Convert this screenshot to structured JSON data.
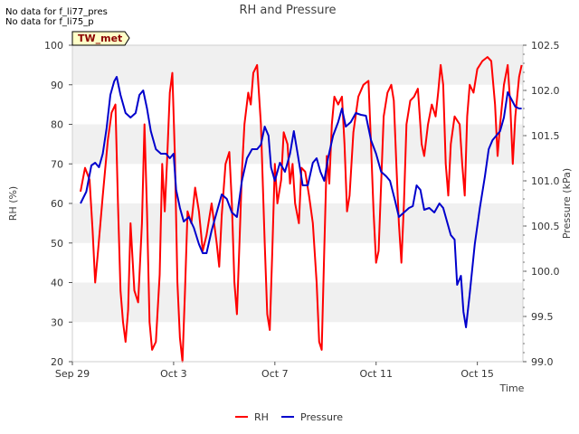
{
  "notes": [
    "No data for f_li77_pres",
    "No data for f_li75_p"
  ],
  "chart_data": {
    "type": "line",
    "title": "RH and Pressure",
    "station_badge": "TW_met",
    "xlabel": "Time",
    "ylabel_left": "RH (%)",
    "ylabel_right": "Pressure (kPa)",
    "x_ticks": [
      "Sep 29",
      "Oct 3",
      "Oct 7",
      "Oct 11",
      "Oct 15"
    ],
    "x_tick_days": [
      0,
      4,
      8,
      12,
      16
    ],
    "x_range_days": [
      0,
      17.8
    ],
    "ylim_left": [
      20,
      100
    ],
    "yticks_left": [
      20,
      30,
      40,
      50,
      60,
      70,
      80,
      90,
      100
    ],
    "ylim_right": [
      99.0,
      102.5
    ],
    "yticks_right": [
      "99.0",
      "99.5",
      "100.0",
      "100.5",
      "101.0",
      "101.5",
      "102.0",
      "102.5"
    ],
    "grid": "horizontal bands",
    "legend_position": "bottom-center",
    "series": [
      {
        "name": "RH",
        "axis": "left",
        "color": "#ff0000",
        "points": [
          [
            0.32,
            63
          ],
          [
            0.5,
            69
          ],
          [
            0.68,
            66
          ],
          [
            0.8,
            53
          ],
          [
            0.9,
            40
          ],
          [
            1.0,
            47
          ],
          [
            1.2,
            62
          ],
          [
            1.4,
            76
          ],
          [
            1.55,
            83
          ],
          [
            1.7,
            85
          ],
          [
            1.8,
            60
          ],
          [
            1.9,
            38
          ],
          [
            2.0,
            30
          ],
          [
            2.1,
            25
          ],
          [
            2.2,
            33
          ],
          [
            2.3,
            55
          ],
          [
            2.45,
            38
          ],
          [
            2.6,
            35
          ],
          [
            2.75,
            55
          ],
          [
            2.85,
            80
          ],
          [
            2.95,
            58
          ],
          [
            3.05,
            30
          ],
          [
            3.15,
            23
          ],
          [
            3.3,
            25
          ],
          [
            3.45,
            42
          ],
          [
            3.55,
            70
          ],
          [
            3.65,
            58
          ],
          [
            3.75,
            72
          ],
          [
            3.85,
            88
          ],
          [
            3.95,
            93
          ],
          [
            4.05,
            72
          ],
          [
            4.15,
            40
          ],
          [
            4.25,
            26
          ],
          [
            4.35,
            20
          ],
          [
            4.45,
            38
          ],
          [
            4.55,
            58
          ],
          [
            4.7,
            55
          ],
          [
            4.85,
            64
          ],
          [
            5.0,
            58
          ],
          [
            5.15,
            48
          ],
          [
            5.3,
            52
          ],
          [
            5.5,
            60
          ],
          [
            5.7,
            50
          ],
          [
            5.8,
            44
          ],
          [
            5.9,
            57
          ],
          [
            6.05,
            70
          ],
          [
            6.2,
            73
          ],
          [
            6.3,
            60
          ],
          [
            6.4,
            40
          ],
          [
            6.5,
            32
          ],
          [
            6.6,
            50
          ],
          [
            6.7,
            68
          ],
          [
            6.8,
            80
          ],
          [
            6.95,
            88
          ],
          [
            7.05,
            85
          ],
          [
            7.15,
            93
          ],
          [
            7.3,
            95
          ],
          [
            7.45,
            80
          ],
          [
            7.6,
            50
          ],
          [
            7.7,
            32
          ],
          [
            7.8,
            28
          ],
          [
            7.9,
            48
          ],
          [
            8.0,
            70
          ],
          [
            8.1,
            60
          ],
          [
            8.25,
            66
          ],
          [
            8.35,
            78
          ],
          [
            8.5,
            75
          ],
          [
            8.6,
            65
          ],
          [
            8.7,
            70
          ],
          [
            8.8,
            60
          ],
          [
            8.95,
            55
          ],
          [
            9.05,
            69
          ],
          [
            9.2,
            68
          ],
          [
            9.35,
            62
          ],
          [
            9.5,
            55
          ],
          [
            9.65,
            40
          ],
          [
            9.75,
            25
          ],
          [
            9.85,
            23
          ],
          [
            9.95,
            48
          ],
          [
            10.05,
            72
          ],
          [
            10.15,
            65
          ],
          [
            10.25,
            80
          ],
          [
            10.35,
            87
          ],
          [
            10.5,
            85
          ],
          [
            10.65,
            87
          ],
          [
            10.75,
            75
          ],
          [
            10.85,
            58
          ],
          [
            10.95,
            62
          ],
          [
            11.1,
            78
          ],
          [
            11.3,
            87
          ],
          [
            11.5,
            90
          ],
          [
            11.7,
            91
          ],
          [
            11.8,
            75
          ],
          [
            11.9,
            58
          ],
          [
            12.0,
            45
          ],
          [
            12.1,
            48
          ],
          [
            12.2,
            65
          ],
          [
            12.3,
            82
          ],
          [
            12.45,
            88
          ],
          [
            12.6,
            90
          ],
          [
            12.7,
            86
          ],
          [
            12.8,
            70
          ],
          [
            12.9,
            55
          ],
          [
            13.0,
            45
          ],
          [
            13.1,
            60
          ],
          [
            13.2,
            80
          ],
          [
            13.35,
            86
          ],
          [
            13.5,
            87
          ],
          [
            13.65,
            89
          ],
          [
            13.8,
            75
          ],
          [
            13.9,
            72
          ],
          [
            14.05,
            80
          ],
          [
            14.2,
            85
          ],
          [
            14.35,
            82
          ],
          [
            14.45,
            88
          ],
          [
            14.55,
            95
          ],
          [
            14.65,
            90
          ],
          [
            14.75,
            70
          ],
          [
            14.85,
            62
          ],
          [
            14.95,
            75
          ],
          [
            15.1,
            82
          ],
          [
            15.3,
            80
          ],
          [
            15.4,
            70
          ],
          [
            15.5,
            62
          ],
          [
            15.6,
            82
          ],
          [
            15.7,
            90
          ],
          [
            15.85,
            88
          ],
          [
            16.0,
            94
          ],
          [
            16.2,
            96
          ],
          [
            16.4,
            97
          ],
          [
            16.55,
            96
          ],
          [
            16.7,
            85
          ],
          [
            16.8,
            72
          ],
          [
            16.9,
            80
          ],
          [
            17.05,
            90
          ],
          [
            17.2,
            95
          ],
          [
            17.3,
            85
          ],
          [
            17.4,
            70
          ],
          [
            17.5,
            82
          ],
          [
            17.65,
            92
          ],
          [
            17.75,
            95
          ]
        ]
      },
      {
        "name": "Pressure",
        "axis": "right",
        "color": "#0000cc",
        "points": [
          [
            0.32,
            100.75
          ],
          [
            0.55,
            100.88
          ],
          [
            0.75,
            101.17
          ],
          [
            0.9,
            101.2
          ],
          [
            1.05,
            101.15
          ],
          [
            1.2,
            101.3
          ],
          [
            1.35,
            101.58
          ],
          [
            1.5,
            101.95
          ],
          [
            1.65,
            102.1
          ],
          [
            1.75,
            102.15
          ],
          [
            1.9,
            101.95
          ],
          [
            2.1,
            101.75
          ],
          [
            2.3,
            101.7
          ],
          [
            2.5,
            101.75
          ],
          [
            2.65,
            101.95
          ],
          [
            2.8,
            102.0
          ],
          [
            2.95,
            101.8
          ],
          [
            3.1,
            101.55
          ],
          [
            3.3,
            101.35
          ],
          [
            3.5,
            101.3
          ],
          [
            3.7,
            101.3
          ],
          [
            3.85,
            101.25
          ],
          [
            4.0,
            101.3
          ],
          [
            4.1,
            100.9
          ],
          [
            4.25,
            100.7
          ],
          [
            4.4,
            100.55
          ],
          [
            4.6,
            100.6
          ],
          [
            4.8,
            100.48
          ],
          [
            5.0,
            100.3
          ],
          [
            5.15,
            100.2
          ],
          [
            5.3,
            100.2
          ],
          [
            5.5,
            100.45
          ],
          [
            5.7,
            100.65
          ],
          [
            5.9,
            100.85
          ],
          [
            6.1,
            100.8
          ],
          [
            6.3,
            100.65
          ],
          [
            6.5,
            100.6
          ],
          [
            6.7,
            101.0
          ],
          [
            6.9,
            101.25
          ],
          [
            7.1,
            101.35
          ],
          [
            7.3,
            101.35
          ],
          [
            7.45,
            101.4
          ],
          [
            7.6,
            101.6
          ],
          [
            7.75,
            101.5
          ],
          [
            7.85,
            101.15
          ],
          [
            8.0,
            101.0
          ],
          [
            8.2,
            101.2
          ],
          [
            8.4,
            101.1
          ],
          [
            8.6,
            101.3
          ],
          [
            8.75,
            101.55
          ],
          [
            8.9,
            101.3
          ],
          [
            9.1,
            100.95
          ],
          [
            9.3,
            100.95
          ],
          [
            9.5,
            101.2
          ],
          [
            9.65,
            101.25
          ],
          [
            9.8,
            101.1
          ],
          [
            9.95,
            101.0
          ],
          [
            10.1,
            101.25
          ],
          [
            10.3,
            101.5
          ],
          [
            10.5,
            101.65
          ],
          [
            10.65,
            101.8
          ],
          [
            10.8,
            101.6
          ],
          [
            11.0,
            101.65
          ],
          [
            11.2,
            101.75
          ],
          [
            11.4,
            101.73
          ],
          [
            11.6,
            101.72
          ],
          [
            11.8,
            101.45
          ],
          [
            12.0,
            101.3
          ],
          [
            12.2,
            101.1
          ],
          [
            12.4,
            101.05
          ],
          [
            12.55,
            101.0
          ],
          [
            12.75,
            100.78
          ],
          [
            12.9,
            100.6
          ],
          [
            13.1,
            100.65
          ],
          [
            13.3,
            100.7
          ],
          [
            13.45,
            100.72
          ],
          [
            13.6,
            100.95
          ],
          [
            13.75,
            100.9
          ],
          [
            13.9,
            100.68
          ],
          [
            14.1,
            100.7
          ],
          [
            14.3,
            100.65
          ],
          [
            14.5,
            100.75
          ],
          [
            14.65,
            100.7
          ],
          [
            14.8,
            100.55
          ],
          [
            14.95,
            100.4
          ],
          [
            15.1,
            100.35
          ],
          [
            15.2,
            99.85
          ],
          [
            15.35,
            99.95
          ],
          [
            15.45,
            99.55
          ],
          [
            15.55,
            99.38
          ],
          [
            15.7,
            99.75
          ],
          [
            15.9,
            100.3
          ],
          [
            16.1,
            100.7
          ],
          [
            16.3,
            101.05
          ],
          [
            16.45,
            101.35
          ],
          [
            16.6,
            101.45
          ],
          [
            16.75,
            101.5
          ],
          [
            16.9,
            101.55
          ],
          [
            17.05,
            101.7
          ],
          [
            17.2,
            101.98
          ],
          [
            17.35,
            101.9
          ],
          [
            17.5,
            101.82
          ],
          [
            17.65,
            101.8
          ],
          [
            17.75,
            101.8
          ]
        ]
      }
    ]
  }
}
